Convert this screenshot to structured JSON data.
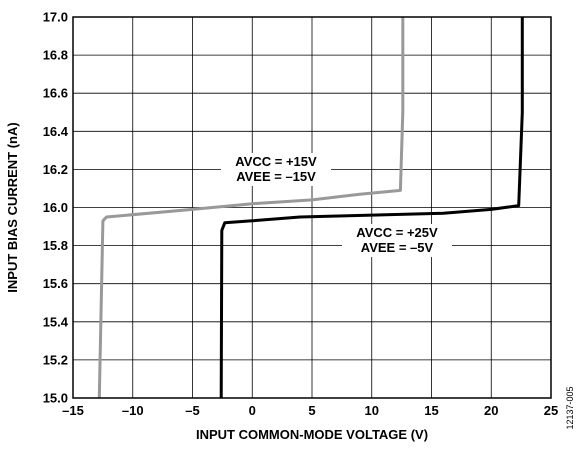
{
  "chart_data": {
    "type": "line",
    "title": "",
    "xlabel": "INPUT COMMON-MODE VOLTAGE (V)",
    "ylabel": "INPUT BIAS CURRENT (nA)",
    "xlim": [
      -15,
      25
    ],
    "ylim": [
      15.0,
      17.0
    ],
    "x_ticks": [
      -15,
      -10,
      -5,
      0,
      5,
      10,
      15,
      20,
      25
    ],
    "x_tick_labels": [
      "–15",
      "–10",
      "–5",
      "0",
      "5",
      "10",
      "15",
      "20",
      "25"
    ],
    "y_ticks": [
      15.0,
      15.2,
      15.4,
      15.6,
      15.8,
      16.0,
      16.2,
      16.4,
      16.6,
      16.8,
      17.0
    ],
    "y_tick_labels": [
      "15.0",
      "15.2",
      "15.4",
      "15.6",
      "15.8",
      "16.0",
      "16.2",
      "16.4",
      "16.6",
      "16.8",
      "17.0"
    ],
    "grid": true,
    "series": [
      {
        "color": "#999999",
        "label_lines": [
          "AVCC = +15V",
          "AVEE = –15V"
        ],
        "points": [
          [
            -12.8,
            15.0
          ],
          [
            -12.5,
            15.93
          ],
          [
            -12.2,
            15.95
          ],
          [
            -5,
            15.99
          ],
          [
            0,
            16.02
          ],
          [
            5,
            16.04
          ],
          [
            9,
            16.07
          ],
          [
            12.4,
            16.09
          ],
          [
            12.6,
            16.5
          ],
          [
            12.6,
            17.0
          ]
        ]
      },
      {
        "color": "#000000",
        "label_lines": [
          "AVCC = +25V",
          "AVEE = –5V"
        ],
        "points": [
          [
            -2.6,
            15.0
          ],
          [
            -2.55,
            15.88
          ],
          [
            -2.3,
            15.92
          ],
          [
            0,
            15.93
          ],
          [
            4,
            15.95
          ],
          [
            10,
            15.96
          ],
          [
            16,
            15.97
          ],
          [
            20,
            15.99
          ],
          [
            22.3,
            16.01
          ],
          [
            22.6,
            16.5
          ],
          [
            22.6,
            17.0
          ]
        ]
      }
    ],
    "figure_id": "12137-005"
  }
}
